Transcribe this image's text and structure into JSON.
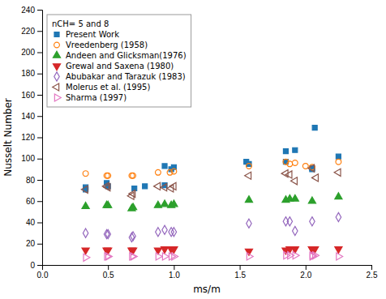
{
  "chart_data": {
    "type": "scatter",
    "x_label": "ms/m",
    "y_label": "Nusselt Number",
    "xlim": [
      0.0,
      2.5
    ],
    "ylim": [
      0,
      240
    ],
    "xticks": [
      {
        "value": 0.0,
        "label": "0.0"
      },
      0.5,
      {
        "value": 1.0,
        "label": "1.0"
      },
      1.5,
      {
        "value": 2.0,
        "label": "2.0"
      },
      2.5
    ],
    "yticks": [
      0,
      20,
      40,
      60,
      80,
      100,
      120,
      140,
      160,
      180,
      200,
      220,
      240
    ],
    "grid": false,
    "legend": "upper-left",
    "legend_title": "nCH= 5 and 8",
    "series": [
      {
        "name": "Present Work",
        "marker": "square",
        "x": [
          0.33,
          0.33,
          0.49,
          0.5,
          0.7,
          0.78,
          0.93,
          0.93,
          0.98,
          1.0,
          1.55,
          1.57,
          1.85,
          1.85,
          1.92,
          2.05,
          2.05,
          2.07,
          2.25
        ],
        "values": [
          73,
          71,
          77,
          74,
          72,
          74,
          75,
          93,
          90,
          92,
          97,
          95,
          97,
          107,
          108,
          90,
          91,
          129,
          102
        ]
      },
      {
        "name": "Vreedenberg (1958)",
        "marker": "circle-open",
        "x": [
          0.33,
          0.49,
          0.5,
          0.68,
          0.69,
          0.88,
          0.97,
          1.0,
          1.57,
          1.85,
          1.88,
          1.92,
          2.0,
          2.05,
          2.25
        ],
        "values": [
          86,
          84,
          84,
          84,
          84,
          87,
          87,
          88,
          93,
          97,
          95,
          96,
          93,
          92,
          97
        ]
      },
      {
        "name": "Andeen and Glicksman(1976)",
        "marker": "triangle-up",
        "x": [
          0.33,
          0.49,
          0.5,
          0.68,
          0.69,
          0.88,
          0.93,
          0.98,
          1.0,
          1.57,
          1.85,
          1.88,
          1.92,
          2.05,
          2.25
        ],
        "values": [
          55,
          56,
          56,
          53,
          54,
          56,
          57,
          56,
          57,
          61,
          61,
          62,
          62,
          60,
          64
        ]
      },
      {
        "name": "Grewal and Saxena (1980)",
        "marker": "triangle-down",
        "x": [
          0.33,
          0.49,
          0.5,
          0.68,
          0.69,
          0.88,
          0.93,
          0.98,
          1.0,
          1.57,
          1.85,
          1.88,
          1.92,
          2.05,
          2.05,
          2.07,
          2.25
        ],
        "values": [
          14,
          14,
          14,
          14,
          14,
          14,
          15,
          15,
          15,
          13,
          14,
          15,
          15,
          15,
          15,
          15,
          15
        ]
      },
      {
        "name": "Abubakar and Tarazuk (1983)",
        "marker": "diamond-open",
        "x": [
          0.33,
          0.49,
          0.5,
          0.68,
          0.69,
          0.88,
          0.93,
          0.98,
          1.0,
          1.57,
          1.85,
          1.88,
          1.92,
          2.05,
          2.25
        ],
        "values": [
          30,
          29,
          29,
          26,
          27,
          31,
          33,
          31,
          31,
          39,
          41,
          41,
          32,
          41,
          45
        ]
      },
      {
        "name": "Molerus et al. (1995)",
        "marker": "triangle-left-open",
        "x": [
          0.33,
          0.49,
          0.5,
          0.68,
          0.69,
          0.88,
          0.93,
          0.98,
          1.0,
          1.57,
          1.85,
          1.88,
          1.92,
          2.05,
          2.08,
          2.25
        ],
        "values": [
          71,
          74,
          73,
          65,
          67,
          74,
          73,
          72,
          74,
          84,
          86,
          85,
          79,
          91,
          82,
          87
        ]
      },
      {
        "name": "Sharma (1997)",
        "marker": "triangle-right-open",
        "x": [
          0.33,
          0.49,
          0.5,
          0.68,
          0.69,
          0.88,
          0.93,
          0.98,
          1.0,
          1.57,
          1.85,
          1.88,
          1.92,
          2.05,
          2.05,
          2.07,
          2.25
        ],
        "values": [
          7,
          8,
          8,
          8,
          8,
          8,
          8,
          8,
          8,
          8,
          9,
          9,
          9,
          8,
          9,
          9,
          8
        ]
      }
    ]
  }
}
